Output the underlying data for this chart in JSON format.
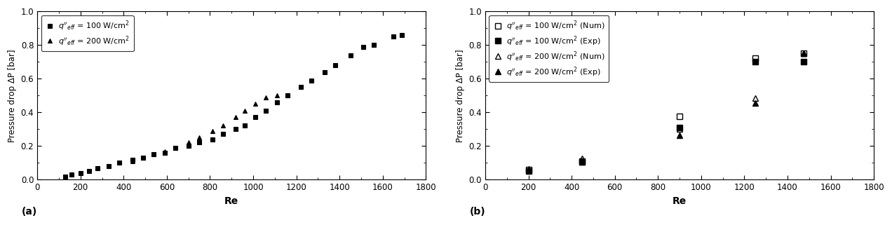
{
  "plot_a": {
    "xlabel": "Re",
    "ylabel": "Pressure drop ΔP [bar]",
    "xlim": [
      0,
      1800
    ],
    "ylim": [
      0.0,
      1.0
    ],
    "xticks": [
      0,
      200,
      400,
      600,
      800,
      1000,
      1200,
      1400,
      1600,
      1800
    ],
    "yticks": [
      0.0,
      0.2,
      0.4,
      0.6,
      0.8,
      1.0
    ],
    "panel_label": "(a)",
    "series": [
      {
        "label": "$q''_{eff}$ = 100 W/cm$^2$",
        "marker": "s",
        "fillstyle": "full",
        "re": [
          130,
          160,
          200,
          240,
          280,
          330,
          380,
          440,
          490,
          540,
          590,
          640,
          700,
          750,
          810,
          860,
          920,
          960,
          1010,
          1060,
          1110,
          1160,
          1220,
          1270,
          1330,
          1380,
          1450,
          1510,
          1560,
          1650,
          1690
        ],
        "dp": [
          0.02,
          0.03,
          0.04,
          0.05,
          0.07,
          0.08,
          0.1,
          0.12,
          0.13,
          0.15,
          0.16,
          0.19,
          0.2,
          0.22,
          0.24,
          0.27,
          0.3,
          0.32,
          0.37,
          0.41,
          0.46,
          0.5,
          0.55,
          0.59,
          0.64,
          0.68,
          0.74,
          0.79,
          0.8,
          0.85,
          0.86
        ]
      },
      {
        "label": "$q''_{eff}$ = 200 W/cm$^2$",
        "marker": "^",
        "fillstyle": "full",
        "re": [
          440,
          490,
          540,
          590,
          640,
          700,
          750,
          810,
          860,
          920,
          960,
          1010,
          1060,
          1110,
          1160
        ],
        "dp": [
          0.11,
          0.13,
          0.15,
          0.17,
          0.19,
          0.22,
          0.25,
          0.29,
          0.32,
          0.37,
          0.41,
          0.45,
          0.49,
          0.5,
          0.5
        ]
      }
    ]
  },
  "plot_b": {
    "xlabel": "Re",
    "ylabel": "Pressure drop ΔP [bar]",
    "xlim": [
      0,
      1800
    ],
    "ylim": [
      0.0,
      1.0
    ],
    "xticks": [
      0,
      200,
      400,
      600,
      800,
      1000,
      1200,
      1400,
      1600,
      1800
    ],
    "yticks": [
      0.0,
      0.2,
      0.4,
      0.6,
      0.8,
      1.0
    ],
    "panel_label": "(b)",
    "series": [
      {
        "label": "$q''_{eff}$ = 100 W/cm$^2$ (Num)",
        "marker": "s",
        "fillstyle": "none",
        "re": [
          200,
          450,
          900,
          1250,
          1475
        ],
        "dp": [
          0.058,
          0.108,
          0.375,
          0.72,
          0.75
        ]
      },
      {
        "label": "$q''_{eff}$ = 100 W/cm$^2$ (Exp)",
        "marker": "s",
        "fillstyle": "full",
        "re": [
          200,
          450,
          900,
          1250,
          1475
        ],
        "dp": [
          0.05,
          0.105,
          0.31,
          0.7,
          0.7
        ]
      },
      {
        "label": "$q''_{eff}$ = 200 W/cm$^2$ (Num)",
        "marker": "^",
        "fillstyle": "none",
        "re": [
          200,
          450,
          900,
          1250,
          1475
        ],
        "dp": [
          0.065,
          0.128,
          0.3,
          0.485,
          0.75
        ]
      },
      {
        "label": "$q''_{eff}$ = 200 W/cm$^2$ (Exp)",
        "marker": "^",
        "fillstyle": "full",
        "re": [
          200,
          450,
          900,
          1250,
          1475
        ],
        "dp": [
          0.055,
          0.105,
          0.265,
          0.455,
          0.75
        ]
      }
    ]
  }
}
